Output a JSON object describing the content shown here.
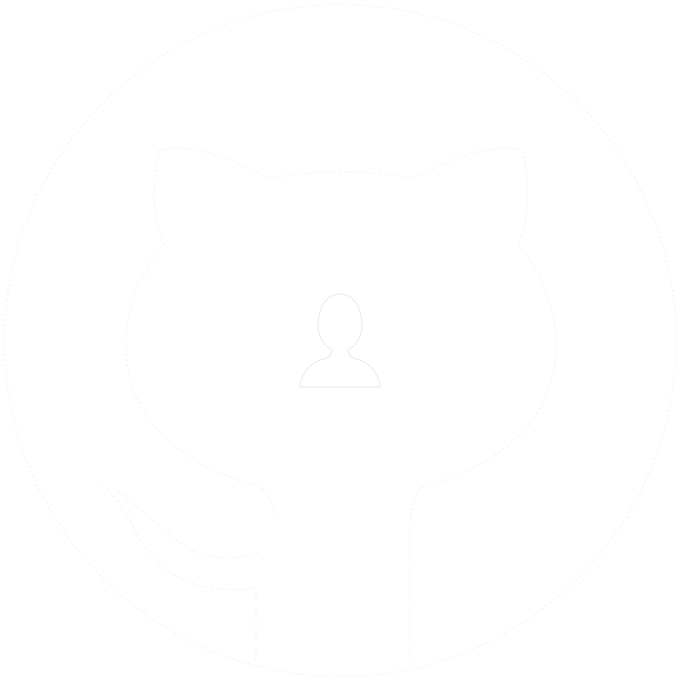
{
  "colors": {
    "background": "#ffffff",
    "logo_outline": "#f4f4f4",
    "avatar_fill": "#ffffff",
    "avatar_outline": "#ececec"
  },
  "icons": {
    "logo": "github-octocat-icon",
    "avatar": "default-user-avatar-icon"
  }
}
